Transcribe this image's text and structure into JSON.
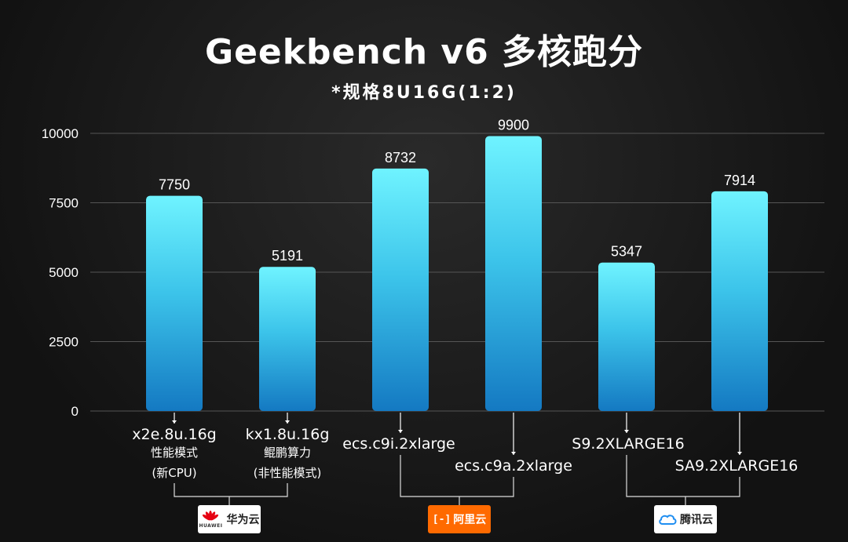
{
  "title": "Geekbench v6 多核跑分",
  "subtitle": "*规格8U16G(1:2)",
  "chart_data": {
    "type": "bar",
    "title": "Geekbench v6 多核跑分",
    "subtitle": "*规格8U16G(1:2)",
    "ylim": [
      0,
      10000
    ],
    "yticks": [
      "0",
      "2500",
      "5000",
      "7500",
      "10000"
    ],
    "grid": true,
    "categories": [
      {
        "name": "x2e.8u.16g",
        "sub": [
          "性能模式",
          "(新CPU)"
        ],
        "value": 7750,
        "label": "7750",
        "group": 0
      },
      {
        "name": "kx1.8u.16g",
        "sub": [
          "鲲鹏算力",
          "(非性能模式)"
        ],
        "value": 5191,
        "label": "5191",
        "group": 0
      },
      {
        "name": "ecs.c9i.2xlarge",
        "sub": [],
        "value": 8732,
        "label": "8732",
        "group": 1
      },
      {
        "name": "ecs.c9a.2xlarge",
        "sub": [],
        "value": 9900,
        "label": "9900",
        "group": 1
      },
      {
        "name": "S9.2XLARGE16",
        "sub": [],
        "value": 5347,
        "label": "5347",
        "group": 2
      },
      {
        "name": "SA9.2XLARGE16",
        "sub": [],
        "value": 7914,
        "label": "7914",
        "group": 2
      }
    ],
    "groups": [
      "华为云",
      "阿里云",
      "腾讯云"
    ],
    "colors": {
      "bar_top": "#6ff3ff",
      "bar_mid": "#3cc4ea",
      "bar_bottom": "#1479c2",
      "grid": "#555555"
    }
  },
  "logos": {
    "huawei": {
      "text": "华为云",
      "sub": "HUAWEI"
    },
    "aliyun": {
      "text": "阿里云",
      "bracket": "[-]"
    },
    "tencent": {
      "text": "腾讯云"
    }
  }
}
